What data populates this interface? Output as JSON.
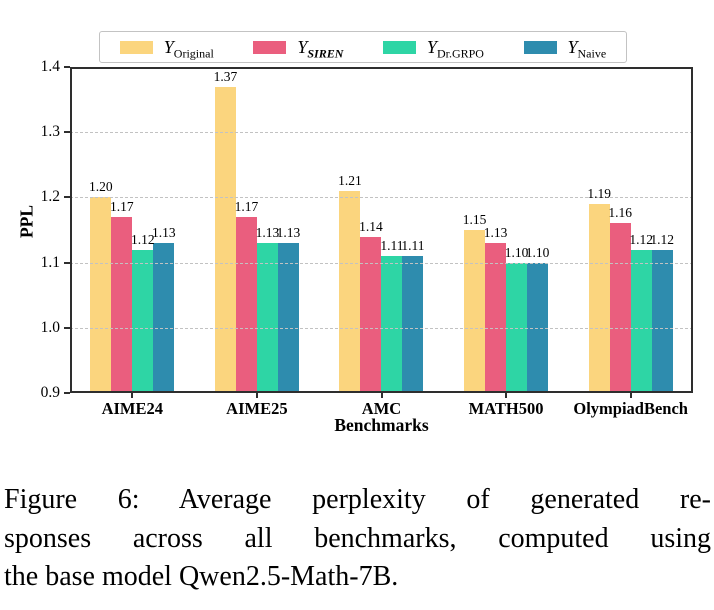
{
  "figure": {
    "caption_lines": [
      "Figure 6:  Average perplexity of generated re-",
      "sponses across all benchmarks, computed using",
      "the base model Qwen2.5-Math-7B."
    ]
  },
  "chart_data": {
    "type": "bar",
    "title": "",
    "xlabel": "Benchmarks",
    "ylabel": "PPL",
    "ylim": [
      0.9,
      1.4
    ],
    "yticks": [
      0.9,
      1.0,
      1.1,
      1.2,
      1.3,
      1.4
    ],
    "grid": "horizontal dashed gridlines at each ytick, drawn above bars",
    "legend_position": "top center, outside plot, horizontal row in bordered box",
    "legend_symbol": "Y",
    "value_label_format": "2 decimals shown above each bar",
    "categories": [
      "AIME24",
      "AIME25",
      "AMC",
      "MATH500",
      "OlympiadBench"
    ],
    "series": [
      {
        "name": "Y_Original",
        "sub": "Original",
        "sub_style": "normal",
        "color": "#FBD57E",
        "values": [
          1.2,
          1.37,
          1.21,
          1.15,
          1.19
        ]
      },
      {
        "name": "Y_SIREN",
        "sub": "SIREN",
        "sub_style": "bold-italic",
        "color": "#EA5E7E",
        "values": [
          1.17,
          1.17,
          1.14,
          1.13,
          1.16
        ]
      },
      {
        "name": "Y_Dr.GRPO",
        "sub": "Dr.GRPO",
        "sub_style": "normal",
        "color": "#2ED5A5",
        "values": [
          1.12,
          1.13,
          1.11,
          1.1,
          1.12
        ]
      },
      {
        "name": "Y_Naive",
        "sub": "Naive",
        "sub_style": "normal",
        "color": "#2E8CAE",
        "values": [
          1.13,
          1.13,
          1.11,
          1.1,
          1.12
        ]
      }
    ],
    "colors": {
      "spine": "#2e2e2e",
      "gridline": "#c2c2c2",
      "background": "#ffffff"
    }
  }
}
